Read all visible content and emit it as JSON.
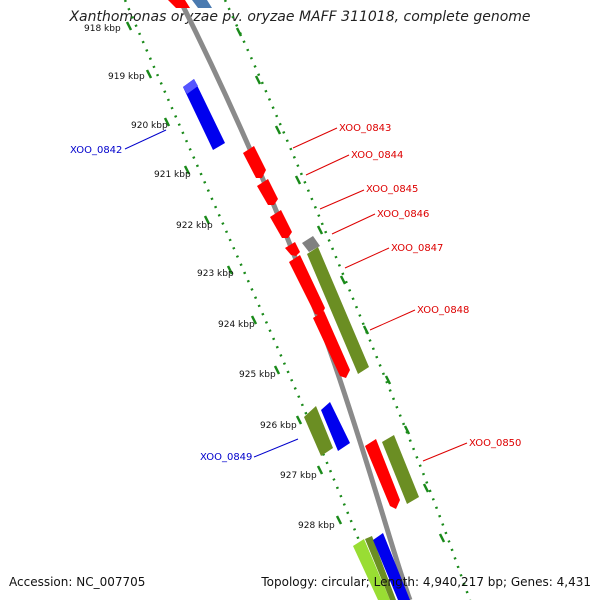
{
  "title": "Xanthomonas oryzae pv. oryzae MAFF 311018, complete genome",
  "footer": {
    "accession": "Accession: NC_007705",
    "stats": "Topology: circular; Length: 4,940,217 bp; Genes: 4,431"
  },
  "colors": {
    "backbone": "#8a8a8a",
    "tick": "#1a8a1a",
    "minus_label": "#0000cc",
    "plus_label": "#dd0000",
    "red_gene": "#ff0000",
    "blue_gene": "#0000ee",
    "olive_gene": "#6b8e23",
    "gray_gene": "#808080",
    "lime_gene": "#99dd33"
  },
  "kbp_labels": [
    "918 kbp",
    "919 kbp",
    "920 kbp",
    "921 kbp",
    "922 kbp",
    "923 kbp",
    "924 kbp",
    "925 kbp",
    "926 kbp",
    "927 kbp",
    "928 kbp"
  ],
  "genes": [
    {
      "id": "XOO_0842",
      "strand": "minus",
      "color": "blue_gene"
    },
    {
      "id": "XOO_0843",
      "strand": "plus",
      "color": "red_gene"
    },
    {
      "id": "XOO_0844",
      "strand": "plus",
      "color": "red_gene"
    },
    {
      "id": "XOO_0845",
      "strand": "plus",
      "color": "red_gene"
    },
    {
      "id": "XOO_0846",
      "strand": "plus",
      "color": "red_gene"
    },
    {
      "id": "XOO_0847",
      "strand": "plus",
      "color": "gray_gene"
    },
    {
      "id": "XOO_0848",
      "strand": "plus",
      "color": "olive_gene"
    },
    {
      "id": "XOO_0849",
      "strand": "minus",
      "color": "olive_gene"
    },
    {
      "id": "XOO_0850",
      "strand": "plus",
      "color": "olive_gene"
    }
  ]
}
